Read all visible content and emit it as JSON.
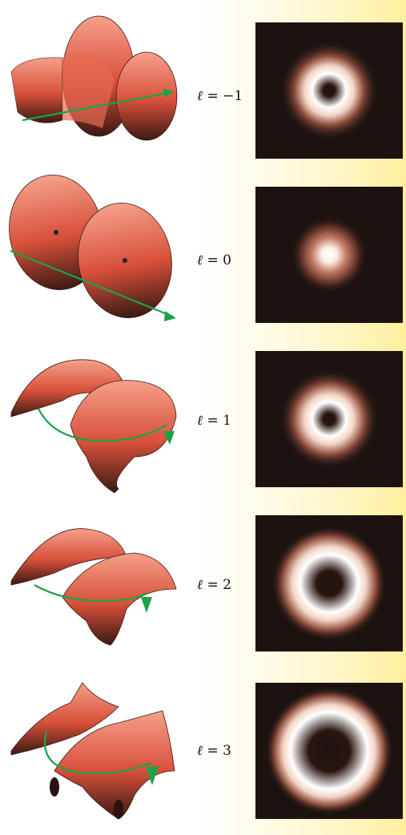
{
  "modes": [
    {
      "label_prefix": "ℓ",
      "label_eq": " = −1",
      "l": -1
    },
    {
      "label_prefix": "ℓ",
      "label_eq": " = 0",
      "l": 0
    },
    {
      "label_prefix": "ℓ",
      "label_eq": " = 1",
      "l": 1
    },
    {
      "label_prefix": "ℓ",
      "label_eq": " = 2",
      "l": 2
    },
    {
      "label_prefix": "ℓ",
      "label_eq": " = 3",
      "l": 3
    }
  ],
  "colors": {
    "background_left": "#ffffff",
    "background_right": "#ffef9e",
    "panel_background": "#1c1311",
    "beam_glow": "#c8735a",
    "beam_core": "#ffffff",
    "wavefront_light": "#f08a74",
    "wavefront_dark": "#4a2018",
    "axis_arrow": "#1aa34a"
  },
  "icons": {
    "wavefront": "helical-wavefront-surface",
    "arrow": "propagation-axis-arrow"
  }
}
